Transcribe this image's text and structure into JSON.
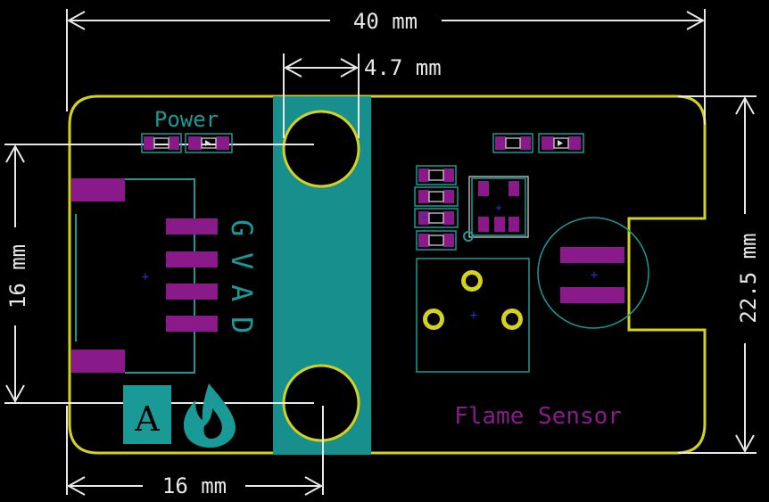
{
  "dimensions": {
    "width_label": "40 mm",
    "hole_width_label": "4.7 mm",
    "height_label": "22.5 mm",
    "pin_span_label": "16 mm",
    "hole_offset_label": "16 mm"
  },
  "silkscreen": {
    "power_label": "Power",
    "pin_labels": [
      "G",
      "V",
      "A",
      "D"
    ],
    "board_title": "Flame Sensor",
    "badge_letter": "A"
  },
  "colors": {
    "background": "#000000",
    "board_outline": "#d4d21c",
    "copper_pad": "#8a1a8a",
    "silkscreen": "#1a9a96",
    "dimension": "#e8e8e8"
  }
}
